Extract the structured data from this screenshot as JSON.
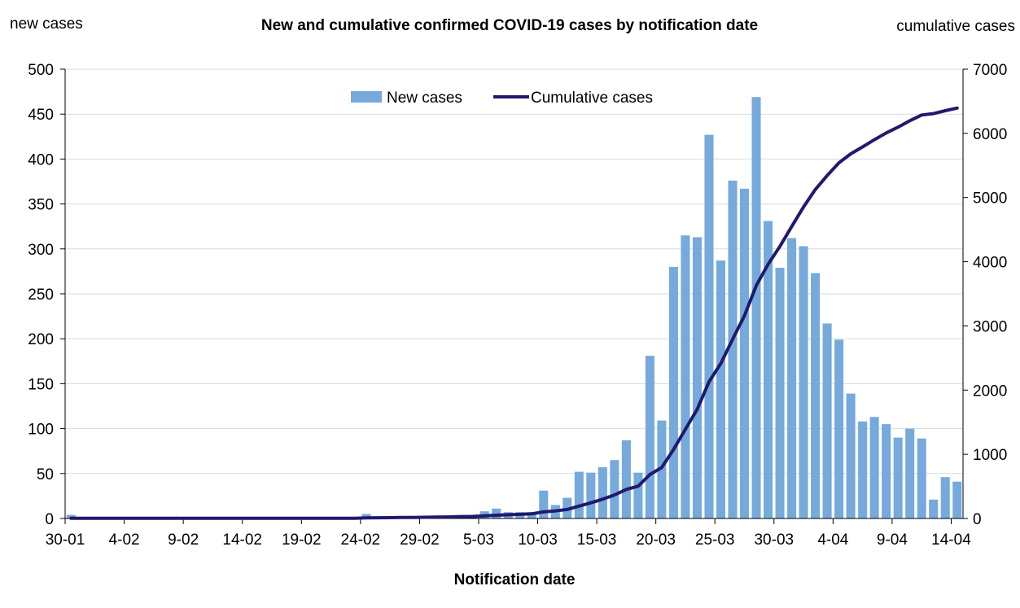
{
  "chart_data": {
    "type": "bar+line",
    "title": "New and cumulative confirmed COVID-19 cases by notification date",
    "xlabel": "Notification date",
    "ylabel_left": "new cases",
    "ylabel_right": "cumulative cases",
    "ylim_left": [
      0,
      500
    ],
    "ylim_right": [
      0,
      7000
    ],
    "yticks_left": [
      0,
      50,
      100,
      150,
      200,
      250,
      300,
      350,
      400,
      450,
      500
    ],
    "yticks_right": [
      0,
      1000,
      2000,
      3000,
      4000,
      5000,
      6000,
      7000
    ],
    "x_start": "2020-01-30",
    "x_end": "2020-04-14",
    "xtick_labels": [
      "30-01",
      "4-02",
      "9-02",
      "14-02",
      "19-02",
      "24-02",
      "29-02",
      "5-03",
      "10-03",
      "15-03",
      "20-03",
      "25-03",
      "30-03",
      "4-04",
      "9-04",
      "14-04"
    ],
    "grid": "horizontal",
    "legend_position": "top-center",
    "series": [
      {
        "name": "New cases",
        "type": "bar",
        "color": "#76a9dc",
        "axis": "left",
        "x": [
          "2020-01-30",
          "2020-01-31",
          "2020-02-01",
          "2020-02-02",
          "2020-02-03",
          "2020-02-04",
          "2020-02-05",
          "2020-02-06",
          "2020-02-07",
          "2020-02-08",
          "2020-02-09",
          "2020-02-10",
          "2020-02-11",
          "2020-02-12",
          "2020-02-13",
          "2020-02-14",
          "2020-02-15",
          "2020-02-16",
          "2020-02-17",
          "2020-02-18",
          "2020-02-19",
          "2020-02-20",
          "2020-02-21",
          "2020-02-22",
          "2020-02-23",
          "2020-02-24",
          "2020-02-25",
          "2020-02-26",
          "2020-02-27",
          "2020-02-28",
          "2020-02-29",
          "2020-03-01",
          "2020-03-02",
          "2020-03-03",
          "2020-03-04",
          "2020-03-05",
          "2020-03-06",
          "2020-03-07",
          "2020-03-08",
          "2020-03-09",
          "2020-03-10",
          "2020-03-11",
          "2020-03-12",
          "2020-03-13",
          "2020-03-14",
          "2020-03-15",
          "2020-03-16",
          "2020-03-17",
          "2020-03-18",
          "2020-03-19",
          "2020-03-20",
          "2020-03-21",
          "2020-03-22",
          "2020-03-23",
          "2020-03-24",
          "2020-03-25",
          "2020-03-26",
          "2020-03-27",
          "2020-03-28",
          "2020-03-29",
          "2020-03-30",
          "2020-03-31",
          "2020-04-01",
          "2020-04-02",
          "2020-04-03",
          "2020-04-04",
          "2020-04-05",
          "2020-04-06",
          "2020-04-07",
          "2020-04-08",
          "2020-04-09",
          "2020-04-10",
          "2020-04-11",
          "2020-04-12",
          "2020-04-13",
          "2020-04-14"
        ],
        "values": [
          4,
          0,
          0,
          0,
          0,
          0,
          0,
          0,
          0,
          0,
          0,
          0,
          0,
          0,
          0,
          0,
          0,
          0,
          0,
          0,
          0,
          0,
          0,
          0,
          0,
          5,
          2,
          2,
          2,
          2,
          2,
          2,
          3,
          4,
          4,
          8,
          11,
          7,
          7,
          7,
          31,
          15,
          23,
          52,
          51,
          57,
          65,
          87,
          51,
          181,
          109,
          280,
          315,
          313,
          427,
          287,
          376,
          367,
          469,
          331,
          279,
          312,
          303,
          273,
          217,
          199,
          139,
          108,
          113,
          105,
          90,
          100,
          89,
          21,
          46,
          41
        ]
      },
      {
        "name": "Cumulative cases",
        "type": "line",
        "color": "#1f1a6e",
        "axis": "right",
        "x": [
          "2020-01-30",
          "2020-01-31",
          "2020-02-01",
          "2020-02-02",
          "2020-02-03",
          "2020-02-04",
          "2020-02-05",
          "2020-02-06",
          "2020-02-07",
          "2020-02-08",
          "2020-02-09",
          "2020-02-10",
          "2020-02-11",
          "2020-02-12",
          "2020-02-13",
          "2020-02-14",
          "2020-02-15",
          "2020-02-16",
          "2020-02-17",
          "2020-02-18",
          "2020-02-19",
          "2020-02-20",
          "2020-02-21",
          "2020-02-22",
          "2020-02-23",
          "2020-02-24",
          "2020-02-25",
          "2020-02-26",
          "2020-02-27",
          "2020-02-28",
          "2020-02-29",
          "2020-03-01",
          "2020-03-02",
          "2020-03-03",
          "2020-03-04",
          "2020-03-05",
          "2020-03-06",
          "2020-03-07",
          "2020-03-08",
          "2020-03-09",
          "2020-03-10",
          "2020-03-11",
          "2020-03-12",
          "2020-03-13",
          "2020-03-14",
          "2020-03-15",
          "2020-03-16",
          "2020-03-17",
          "2020-03-18",
          "2020-03-19",
          "2020-03-20",
          "2020-03-21",
          "2020-03-22",
          "2020-03-23",
          "2020-03-24",
          "2020-03-25",
          "2020-03-26",
          "2020-03-27",
          "2020-03-28",
          "2020-03-29",
          "2020-03-30",
          "2020-03-31",
          "2020-04-01",
          "2020-04-02",
          "2020-04-03",
          "2020-04-04",
          "2020-04-05",
          "2020-04-06",
          "2020-04-07",
          "2020-04-08",
          "2020-04-09",
          "2020-04-10",
          "2020-04-11",
          "2020-04-12",
          "2020-04-13",
          "2020-04-14"
        ],
        "values": [
          4,
          4,
          4,
          4,
          4,
          4,
          4,
          4,
          4,
          4,
          4,
          4,
          4,
          4,
          4,
          4,
          4,
          4,
          4,
          4,
          4,
          4,
          4,
          4,
          4,
          9,
          11,
          13,
          15,
          17,
          19,
          21,
          24,
          28,
          32,
          40,
          51,
          58,
          65,
          72,
          103,
          118,
          141,
          193,
          244,
          301,
          366,
          453,
          504,
          685,
          794,
          1074,
          1389,
          1702,
          2129,
          2416,
          2792,
          3159,
          3628,
          3959,
          4238,
          4550,
          4853,
          5126,
          5343,
          5542,
          5681,
          5789,
          5902,
          6007,
          6097,
          6197,
          6286,
          6307,
          6353,
          6394
        ]
      }
    ]
  }
}
